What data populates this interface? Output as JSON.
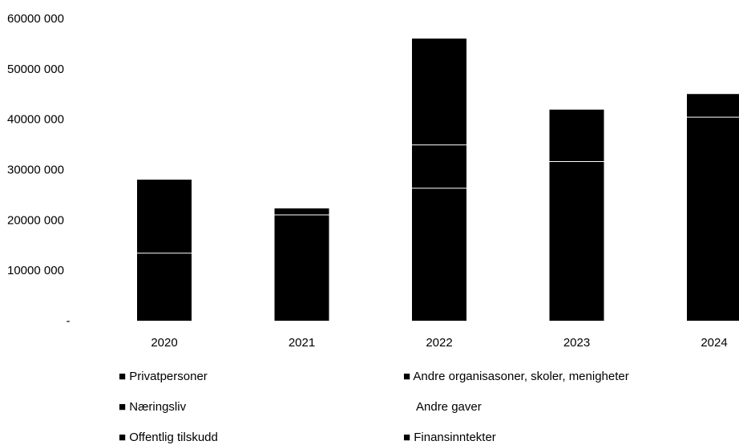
{
  "chart_data": {
    "type": "bar",
    "stacked": true,
    "categories": [
      "2020",
      "2021",
      "2022",
      "2023",
      "2024"
    ],
    "series": [
      {
        "name": "Privatpersoner",
        "color": "#000000",
        "values": [
          13400000,
          21000000,
          26300000,
          31600000,
          40400000
        ]
      },
      {
        "name": "Næringsliv",
        "color": "#000000",
        "values": [
          14600000,
          0,
          8600000,
          0,
          0
        ]
      },
      {
        "name": "Offentlig tilskudd",
        "color": "#000000",
        "values": [
          0,
          1300000,
          0,
          10300000,
          4600000
        ]
      },
      {
        "name": "Andre organisasoner, skoler, menigheter",
        "color": "#000000",
        "values": [
          0,
          0,
          21100000,
          0,
          0
        ]
      },
      {
        "name": "Andre gaver",
        "color": "#ffffff",
        "values": [
          0,
          0,
          0,
          0,
          0
        ]
      },
      {
        "name": "Finansinntekter",
        "color": "#000000",
        "values": [
          0,
          0,
          0,
          0,
          0
        ]
      }
    ],
    "y_ticks": [
      "-",
      "10000 000",
      "20000 000",
      "30000 000",
      "40000 000",
      "50000 000",
      "60000 000"
    ],
    "ylim": [
      0,
      60000000
    ],
    "title": "",
    "xlabel": "",
    "ylabel": "",
    "grid": false,
    "legend_position": "bottom"
  },
  "legend": {
    "items": [
      {
        "label": "Privatpersoner",
        "marker": "■"
      },
      {
        "label": "Andre organisasoner, skoler, menigheter",
        "marker": "■"
      },
      {
        "label": "Næringsliv",
        "marker": "■"
      },
      {
        "label": "Andre gaver",
        "marker": ""
      },
      {
        "label": "Offentlig tilskudd",
        "marker": "■"
      },
      {
        "label": "Finansinntekter",
        "marker": "■"
      }
    ]
  }
}
